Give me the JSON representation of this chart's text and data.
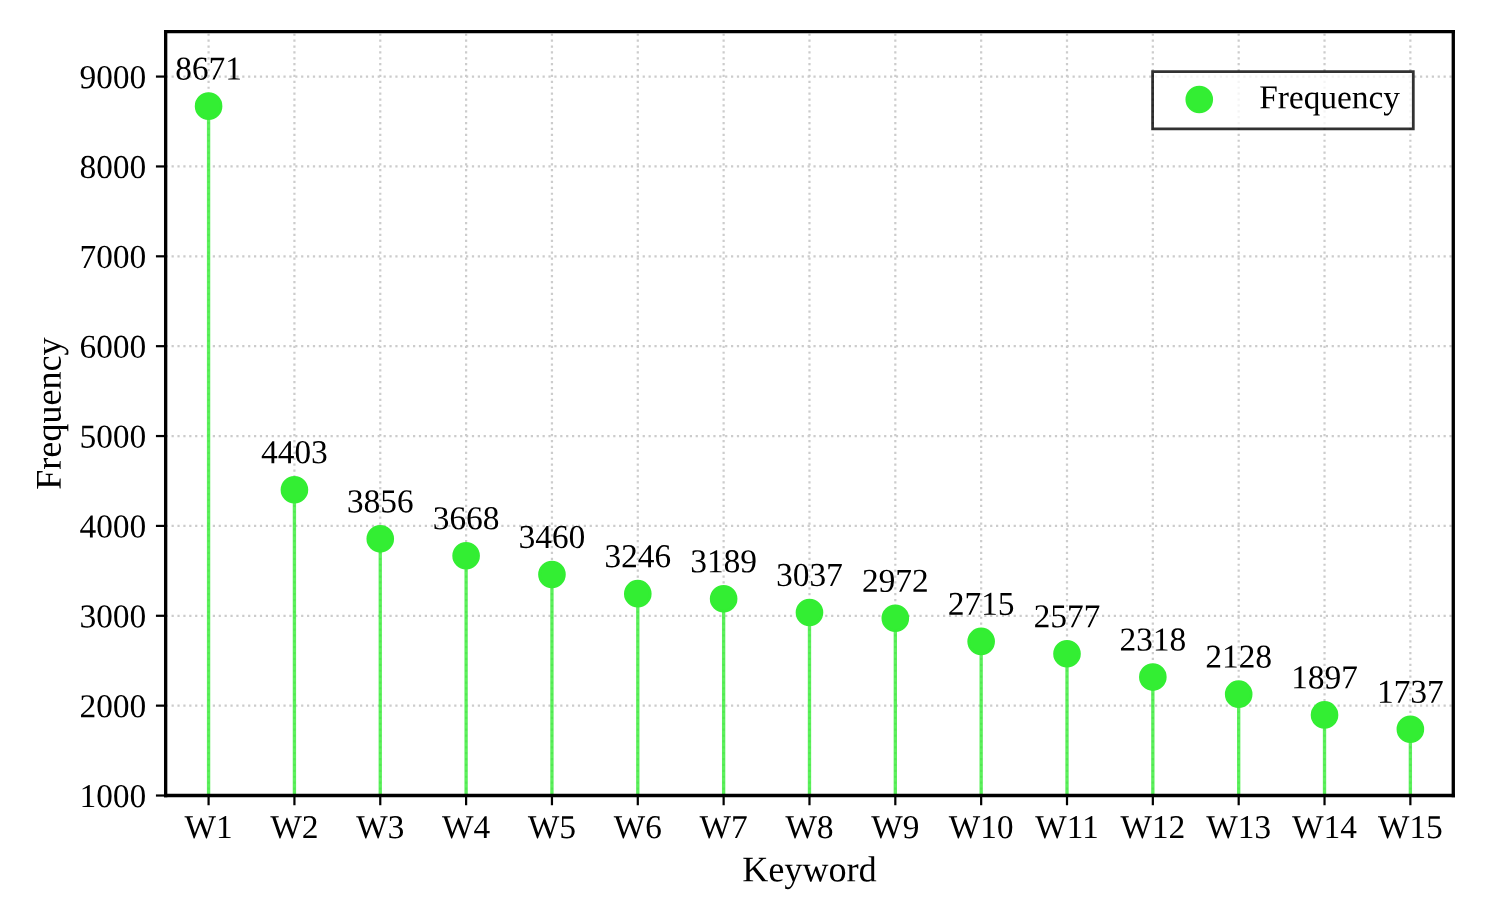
{
  "chart_data": {
    "type": "lollipop",
    "xlabel": "Keyword",
    "ylabel": "Frequency",
    "categories": [
      "W1",
      "W2",
      "W3",
      "W4",
      "W5",
      "W6",
      "W7",
      "W8",
      "W9",
      "W10",
      "W11",
      "W12",
      "W13",
      "W14",
      "W15"
    ],
    "series": [
      {
        "name": "Frequency",
        "color": "#33ee33",
        "values": [
          8671,
          4403,
          3856,
          3668,
          3460,
          3246,
          3189,
          3037,
          2972,
          2715,
          2577,
          2318,
          2128,
          1897,
          1737
        ]
      }
    ],
    "ylim": [
      1000,
      9500
    ],
    "yticks": [
      1000,
      2000,
      3000,
      4000,
      5000,
      6000,
      7000,
      8000,
      9000
    ],
    "grid": true,
    "legend": "top right",
    "marker": "circle",
    "data_labels": true
  }
}
